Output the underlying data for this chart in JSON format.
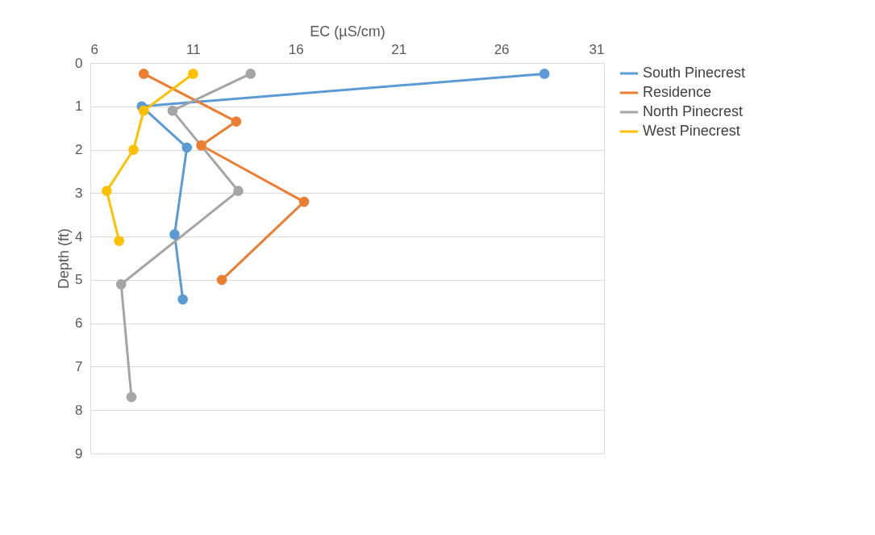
{
  "chart_data": {
    "type": "line",
    "xlabel": "EC (µS/cm)",
    "ylabel": "Depth (ft)",
    "xlim": [
      6,
      31
    ],
    "xticks": [
      6,
      11,
      16,
      21,
      26,
      31
    ],
    "ylim": [
      9,
      0
    ],
    "yticks": [
      0,
      1,
      2,
      3,
      4,
      5,
      6,
      7,
      8,
      9
    ],
    "grid": "y",
    "legend": "right",
    "marker": "circle",
    "line_style": "solid",
    "series": [
      {
        "name": "South Pinecrest",
        "color": "#5b9bd5",
        "x": [
          28.1,
          8.5,
          10.7,
          10.1,
          10.5
        ],
        "values": [
          0.25,
          1.0,
          1.95,
          3.95,
          5.45
        ]
      },
      {
        "name": "Residence",
        "color": "#ed7d31",
        "x": [
          8.6,
          13.1,
          11.4,
          16.4,
          12.4
        ],
        "values": [
          0.25,
          1.35,
          1.9,
          3.2,
          5.0
        ]
      },
      {
        "name": "North Pinecrest",
        "color": "#a5a5a5",
        "x": [
          13.8,
          10.0,
          13.2,
          7.5,
          8.0
        ],
        "values": [
          0.25,
          1.1,
          2.95,
          5.1,
          7.7
        ]
      },
      {
        "name": "West Pinecrest",
        "color": "#ffc000",
        "x": [
          11.0,
          8.6,
          8.1,
          6.8,
          7.4
        ],
        "values": [
          0.25,
          1.1,
          2.0,
          2.95,
          4.1
        ]
      }
    ]
  }
}
